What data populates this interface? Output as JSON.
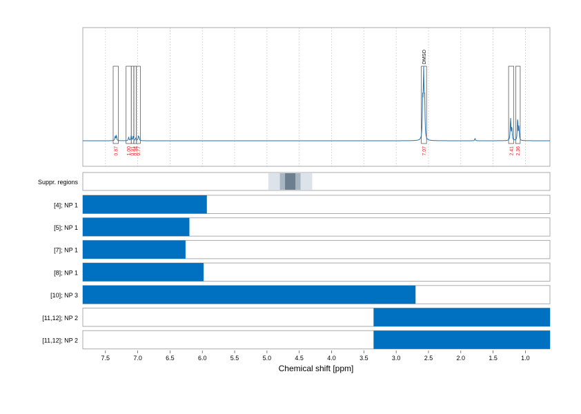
{
  "chart_data": {
    "type": "nmr_spectrum_with_range_bars",
    "xlabel": "Chemical shift [ppm]",
    "xlim": [
      7.85,
      0.62
    ],
    "xaxis_reversed": true,
    "x_ticks": [
      7.5,
      7.0,
      6.5,
      6.0,
      5.5,
      5.0,
      4.5,
      4.0,
      3.5,
      3.0,
      2.5,
      2.0,
      1.5,
      1.0
    ],
    "x_tick_labels": [
      "7.5",
      "7.0",
      "6.5",
      "6.0",
      "5.5",
      "5.0",
      "4.5",
      "4.0",
      "3.5",
      "3.0",
      "2.5",
      "2.0",
      "1.5",
      "1.0"
    ],
    "grid": true,
    "spectrum_color": "#2171b5",
    "bar_color": "#0070c0",
    "integral_label_color": "#e41a1c",
    "solvent_label": "DMSO",
    "spectrum_peaks": [
      {
        "ppm": 7.33,
        "height": 0.07
      },
      {
        "ppm": 7.35,
        "height": 0.06
      },
      {
        "ppm": 7.14,
        "height": 0.05
      },
      {
        "ppm": 7.1,
        "height": 0.07
      },
      {
        "ppm": 7.07,
        "height": 0.06
      },
      {
        "ppm": 7.03,
        "height": 0.04
      },
      {
        "ppm": 6.99,
        "height": 0.05
      },
      {
        "ppm": 6.98,
        "height": 0.04
      },
      {
        "ppm": 2.575,
        "height": 0.97
      },
      {
        "ppm": 2.56,
        "height": 0.55
      },
      {
        "ppm": 2.59,
        "height": 0.5
      },
      {
        "ppm": 1.78,
        "height": 0.03
      },
      {
        "ppm": 1.23,
        "height": 0.3
      },
      {
        "ppm": 1.21,
        "height": 0.18
      },
      {
        "ppm": 1.12,
        "height": 0.3
      },
      {
        "ppm": 1.1,
        "height": 0.18
      }
    ],
    "integral_regions": [
      {
        "from": 7.38,
        "to": 7.3,
        "integral": "0.87"
      },
      {
        "from": 7.18,
        "to": 7.1,
        "integral": "1.00"
      },
      {
        "from": 7.1,
        "to": 7.06,
        "integral": "0.91"
      },
      {
        "from": 7.06,
        "to": 7.02,
        "integral": "0.94"
      },
      {
        "from": 7.02,
        "to": 6.96,
        "integral": "0.77"
      },
      {
        "from": 2.61,
        "to": 2.53,
        "integral": "7.07",
        "annotation": "DMSO"
      },
      {
        "from": 1.26,
        "to": 1.18,
        "integral": "2.41"
      },
      {
        "from": 1.15,
        "to": 1.08,
        "integral": "2.36"
      }
    ],
    "suppressed_regions": {
      "label": "Suppr. regions",
      "bands": [
        {
          "from": 4.98,
          "to": 4.3,
          "shade": "#dce3ea"
        },
        {
          "from": 4.8,
          "to": 4.48,
          "shade": "#a9b6c2"
        },
        {
          "from": 4.72,
          "to": 4.56,
          "shade": "#6d7f8f"
        }
      ]
    },
    "range_bars": [
      {
        "label": "[4]; NP 1",
        "from": 7.85,
        "to": 5.93
      },
      {
        "label": "[5]; NP 1",
        "from": 7.85,
        "to": 6.2
      },
      {
        "label": "[7]; NP 1",
        "from": 7.85,
        "to": 6.26
      },
      {
        "label": "[8]; NP 1",
        "from": 7.85,
        "to": 5.98
      },
      {
        "label": "[10]; NP 3",
        "from": 7.85,
        "to": 2.7
      },
      {
        "label": "[11,12]; NP 2",
        "from": 3.35,
        "to": 0.62
      },
      {
        "label": "[11,12]; NP 2",
        "from": 3.35,
        "to": 0.62
      }
    ]
  }
}
